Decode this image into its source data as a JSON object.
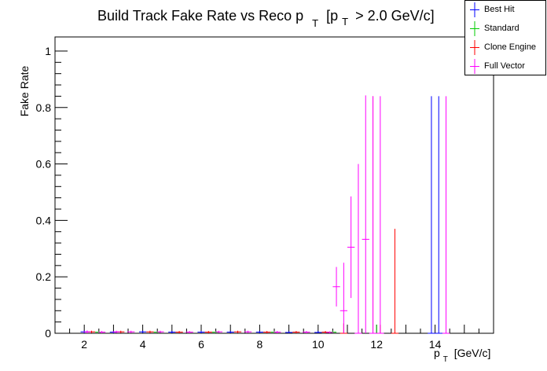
{
  "chart_data": {
    "type": "scatter",
    "title": {
      "main": "Build Track Fake Rate vs Reco p",
      "main_sub": "T",
      "bracket_pre": "[p",
      "bracket_sub": "T",
      "bracket_post": "> 2.0 GeV/c]"
    },
    "xlabel": {
      "main": "p",
      "sub": "T",
      "unit": "[GeV/c]"
    },
    "ylabel": "Fake Rate",
    "xlim": [
      1,
      16
    ],
    "ylim": [
      0,
      1.05
    ],
    "xticks": [
      2,
      4,
      6,
      8,
      10,
      12,
      14
    ],
    "yticks": [
      0,
      0.2,
      0.4,
      0.6,
      0.8,
      1
    ],
    "ytick_labels": [
      "0",
      "0.2",
      "0.4",
      "0.6",
      "0.8",
      "1"
    ],
    "bin_width": 0.25,
    "grid": false,
    "legend_position": "top-right",
    "series": [
      {
        "name": "Best Hit",
        "color": "#0000ff",
        "points": [
          {
            "x": 2.0,
            "y": 0.005,
            "err": 0.005
          },
          {
            "x": 3.0,
            "y": 0.004,
            "err": 0.004
          },
          {
            "x": 4.0,
            "y": 0.005,
            "err": 0.004
          },
          {
            "x": 5.0,
            "y": 0.004,
            "err": 0.004
          },
          {
            "x": 6.0,
            "y": 0.004,
            "err": 0.004
          },
          {
            "x": 7.0,
            "y": 0.004,
            "err": 0.004
          },
          {
            "x": 8.0,
            "y": 0.004,
            "err": 0.004
          },
          {
            "x": 9.0,
            "y": 0.003,
            "err": 0.004
          },
          {
            "x": 10.0,
            "y": 0.003,
            "err": 0.005
          },
          {
            "x": 13.875,
            "y": 0.0,
            "err": 0.84
          },
          {
            "x": 14.125,
            "y": 0.0,
            "err": 0.84
          }
        ]
      },
      {
        "name": "Standard",
        "color": "#00cc00",
        "points": [
          {
            "x": 2.5,
            "y": 0.004,
            "err": 0.004
          },
          {
            "x": 4.5,
            "y": 0.004,
            "err": 0.004
          },
          {
            "x": 6.5,
            "y": 0.004,
            "err": 0.004
          },
          {
            "x": 8.5,
            "y": 0.004,
            "err": 0.004
          },
          {
            "x": 10.5,
            "y": 0.004,
            "err": 0.005
          },
          {
            "x": 12.0,
            "y": 0.0,
            "err": 0.03
          }
        ]
      },
      {
        "name": "Clone Engine",
        "color": "#ff0000",
        "points": [
          {
            "x": 2.25,
            "y": 0.005,
            "err": 0.004
          },
          {
            "x": 3.25,
            "y": 0.005,
            "err": 0.004
          },
          {
            "x": 4.25,
            "y": 0.005,
            "err": 0.004
          },
          {
            "x": 5.25,
            "y": 0.004,
            "err": 0.004
          },
          {
            "x": 6.25,
            "y": 0.004,
            "err": 0.004
          },
          {
            "x": 7.25,
            "y": 0.005,
            "err": 0.004
          },
          {
            "x": 8.25,
            "y": 0.004,
            "err": 0.004
          },
          {
            "x": 9.25,
            "y": 0.004,
            "err": 0.004
          },
          {
            "x": 10.25,
            "y": 0.004,
            "err": 0.004
          },
          {
            "x": 10.875,
            "y": 0.0,
            "err": 0.035
          },
          {
            "x": 11.875,
            "y": 0.0,
            "err": 0.84
          },
          {
            "x": 12.125,
            "y": 0.0,
            "err": 0.03
          },
          {
            "x": 12.625,
            "y": 0.0,
            "err": 0.37
          }
        ]
      },
      {
        "name": "Full Vector",
        "color": "#ff00ff",
        "points": [
          {
            "x": 2.1,
            "y": 0.005,
            "err": 0.005
          },
          {
            "x": 2.6,
            "y": 0.004,
            "err": 0.004
          },
          {
            "x": 3.1,
            "y": 0.005,
            "err": 0.004
          },
          {
            "x": 3.6,
            "y": 0.005,
            "err": 0.004
          },
          {
            "x": 4.6,
            "y": 0.005,
            "err": 0.004
          },
          {
            "x": 5.6,
            "y": 0.004,
            "err": 0.004
          },
          {
            "x": 6.6,
            "y": 0.005,
            "err": 0.004
          },
          {
            "x": 7.6,
            "y": 0.005,
            "err": 0.004
          },
          {
            "x": 8.6,
            "y": 0.004,
            "err": 0.004
          },
          {
            "x": 9.6,
            "y": 0.004,
            "err": 0.004
          },
          {
            "x": 10.4,
            "y": 0.003,
            "err": 0.004
          },
          {
            "x": 10.625,
            "y": 0.165,
            "err": 0.07
          },
          {
            "x": 10.875,
            "y": 0.08,
            "err": 0.17
          },
          {
            "x": 11.125,
            "y": 0.305,
            "err": 0.18
          },
          {
            "x": 11.375,
            "y": 0.0,
            "err": 0.6
          },
          {
            "x": 11.625,
            "y": 0.333,
            "err": 0.51
          },
          {
            "x": 11.875,
            "y": 0.0,
            "err": 0.84
          },
          {
            "x": 12.125,
            "y": 0.0,
            "err": 0.84
          },
          {
            "x": 14.375,
            "y": 0.0,
            "err": 0.84
          }
        ]
      }
    ]
  }
}
